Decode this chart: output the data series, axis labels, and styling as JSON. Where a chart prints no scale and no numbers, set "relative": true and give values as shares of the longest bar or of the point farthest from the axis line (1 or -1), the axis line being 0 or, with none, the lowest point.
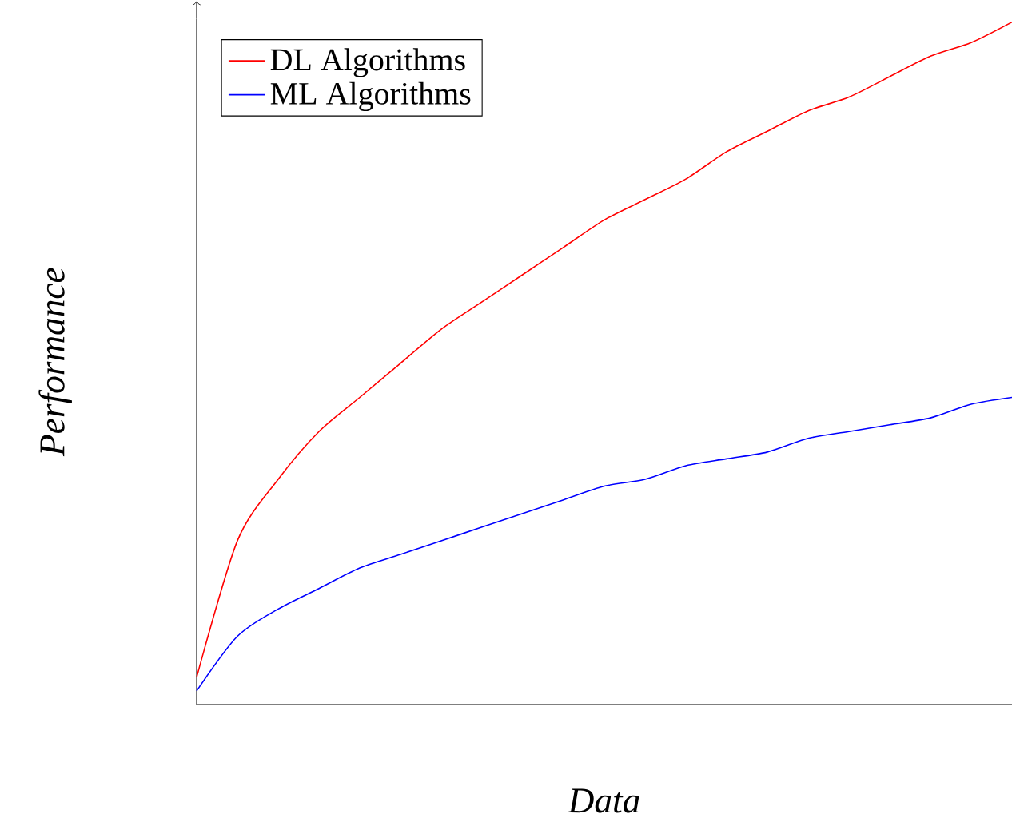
{
  "chart_data": {
    "type": "line",
    "xlabel": "Data",
    "ylabel": "Performance",
    "relative": true,
    "legend": "top left",
    "marker": "none",
    "line_style": "solid",
    "categories": [
      null,
      null,
      null,
      null,
      null,
      null,
      null,
      null,
      null,
      null,
      null,
      null,
      null,
      null,
      null,
      null,
      null,
      null,
      null,
      null,
      null
    ],
    "series": [
      {
        "name": "DL Algorithms",
        "color": "#ff0000",
        "values": [
          0.04,
          0.24,
          0.33,
          0.4,
          0.45,
          0.5,
          0.55,
          0.59,
          0.63,
          0.67,
          0.71,
          0.74,
          0.77,
          0.81,
          0.84,
          0.87,
          0.89,
          0.92,
          0.95,
          0.97,
          1.0
        ]
      },
      {
        "name": "ML Algorithms",
        "color": "#0000ff",
        "values": [
          0.02,
          0.1,
          0.14,
          0.17,
          0.2,
          0.22,
          0.24,
          0.26,
          0.28,
          0.3,
          0.32,
          0.33,
          0.35,
          0.36,
          0.37,
          0.39,
          0.4,
          0.41,
          0.42,
          0.44,
          0.45
        ]
      }
    ]
  }
}
